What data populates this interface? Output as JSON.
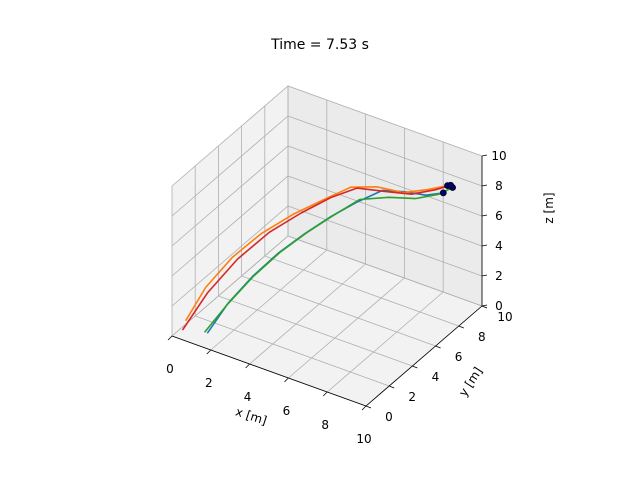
{
  "chart_data": {
    "type": "line",
    "title": "Time = 7.53 s",
    "xlabel": "x [m]",
    "ylabel": "y [m]",
    "zlabel": "z [m]",
    "xlim": [
      0,
      10
    ],
    "ylim": [
      0,
      10
    ],
    "zlim": [
      0,
      10
    ],
    "xticks": [
      "0",
      "2",
      "4",
      "6",
      "8",
      "10"
    ],
    "yticks": [
      "0",
      "2",
      "4",
      "6",
      "8",
      "10"
    ],
    "zticks": [
      "0",
      "2",
      "4",
      "6",
      "8",
      "10"
    ],
    "grid": true,
    "series": [
      {
        "color": "#1f77b4",
        "points": [
          [
            1.6,
            0.4,
            0.7
          ],
          [
            2.3,
            1.0,
            2.6
          ],
          [
            3.2,
            1.6,
            4.4
          ],
          [
            4.1,
            2.3,
            5.9
          ],
          [
            5.0,
            3.1,
            7.1
          ],
          [
            5.8,
            4.0,
            8.0
          ],
          [
            6.5,
            5.0,
            8.6
          ],
          [
            7.2,
            6.1,
            9.0
          ],
          [
            7.9,
            6.9,
            8.7
          ],
          [
            8.6,
            7.5,
            8.4
          ],
          [
            9.2,
            8.0,
            8.5
          ]
        ]
      },
      {
        "color": "#ff7f0e",
        "points": [
          [
            0.6,
            0.2,
            1.2
          ],
          [
            1.2,
            0.9,
            3.2
          ],
          [
            2.1,
            1.7,
            5.1
          ],
          [
            3.1,
            2.5,
            6.6
          ],
          [
            4.2,
            3.4,
            7.8
          ],
          [
            5.3,
            4.4,
            8.7
          ],
          [
            6.1,
            5.2,
            9.3
          ],
          [
            6.9,
            6.1,
            9.1
          ],
          [
            7.8,
            6.9,
            8.6
          ],
          [
            8.6,
            7.6,
            8.7
          ],
          [
            9.3,
            8.2,
            8.9
          ]
        ]
      },
      {
        "color": "#2ca02c",
        "points": [
          [
            1.4,
            0.5,
            0.6
          ],
          [
            2.2,
            1.1,
            2.4
          ],
          [
            3.1,
            1.8,
            4.2
          ],
          [
            4.0,
            2.6,
            5.7
          ],
          [
            4.9,
            3.4,
            6.9
          ],
          [
            5.7,
            4.3,
            7.8
          ],
          [
            6.5,
            5.3,
            8.6
          ],
          [
            7.4,
            6.3,
            8.5
          ],
          [
            8.3,
            7.1,
            8.3
          ],
          [
            9.1,
            7.8,
            8.5
          ],
          [
            9.5,
            8.3,
            8.8
          ]
        ]
      },
      {
        "color": "#d62728",
        "points": [
          [
            0.5,
            0.1,
            0.6
          ],
          [
            1.3,
            0.9,
            2.9
          ],
          [
            2.3,
            1.8,
            5.0
          ],
          [
            3.4,
            2.7,
            6.7
          ],
          [
            4.5,
            3.6,
            7.9
          ],
          [
            5.5,
            4.5,
            8.8
          ],
          [
            6.3,
            5.4,
            9.2
          ],
          [
            7.2,
            6.3,
            8.8
          ],
          [
            8.1,
            7.1,
            8.5
          ],
          [
            8.9,
            7.8,
            8.7
          ],
          [
            9.4,
            8.3,
            8.9
          ]
        ]
      }
    ],
    "markers": {
      "face_color": "#000080",
      "edge_color": "#000000",
      "points": [
        [
          9.2,
          8.0,
          8.5
        ],
        [
          9.3,
          8.2,
          8.9
        ],
        [
          9.5,
          8.3,
          8.8
        ],
        [
          9.4,
          8.3,
          8.9
        ]
      ]
    }
  }
}
